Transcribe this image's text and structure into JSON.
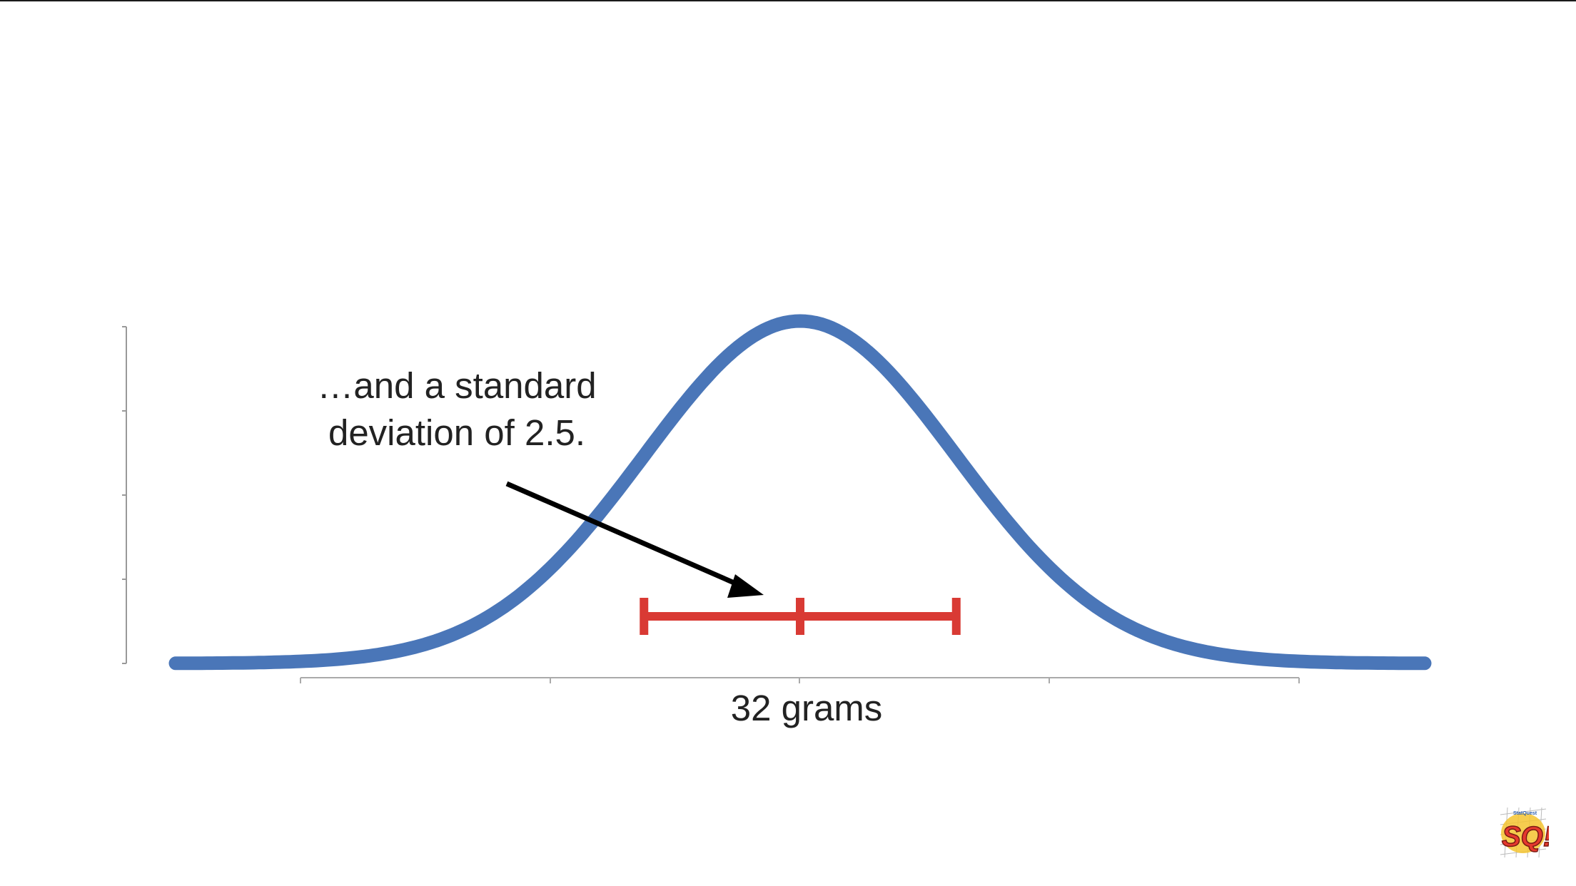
{
  "chart_data": {
    "type": "line",
    "title": "",
    "xlabel": "32 grams",
    "ylabel": "",
    "xlim": [
      22,
      42
    ],
    "ylim": [
      0,
      1.0
    ],
    "grid": false,
    "distribution": "normal",
    "mean": 32,
    "standard_deviation": 2.5,
    "x_tick_values": [
      22,
      26,
      30,
      34,
      38,
      42
    ],
    "y_tick_values": [
      0,
      0.25,
      0.5,
      0.75,
      1.0
    ],
    "series": [
      {
        "color": "#4a76b8",
        "x": [
          22,
          23,
          24,
          25,
          26,
          27,
          28,
          29,
          30,
          31,
          32,
          33,
          34,
          35,
          36,
          37,
          38,
          39,
          40,
          41,
          42
        ],
        "y": [
          0.0003,
          0.0007,
          0.0017,
          0.0039,
          0.0093,
          0.025,
          0.063,
          0.14,
          0.27,
          0.44,
          0.5,
          0.44,
          0.27,
          0.14,
          0.063,
          0.025,
          0.0093,
          0.0039,
          0.0017,
          0.0007,
          0.0003
        ]
      }
    ],
    "sd_bar": {
      "color": "#d93a34",
      "from": 29.5,
      "center": 32,
      "to": 34.5,
      "level": 0.07
    },
    "annotation": {
      "text_line1": "…and a standard",
      "text_line2": "deviation of 2.5.",
      "arrow_color": "#000000"
    }
  },
  "logo": {
    "letters": "SQ!",
    "small_text": "StatQuest",
    "colors": [
      "#e5392e",
      "#f4c430",
      "#2a5db0"
    ]
  }
}
